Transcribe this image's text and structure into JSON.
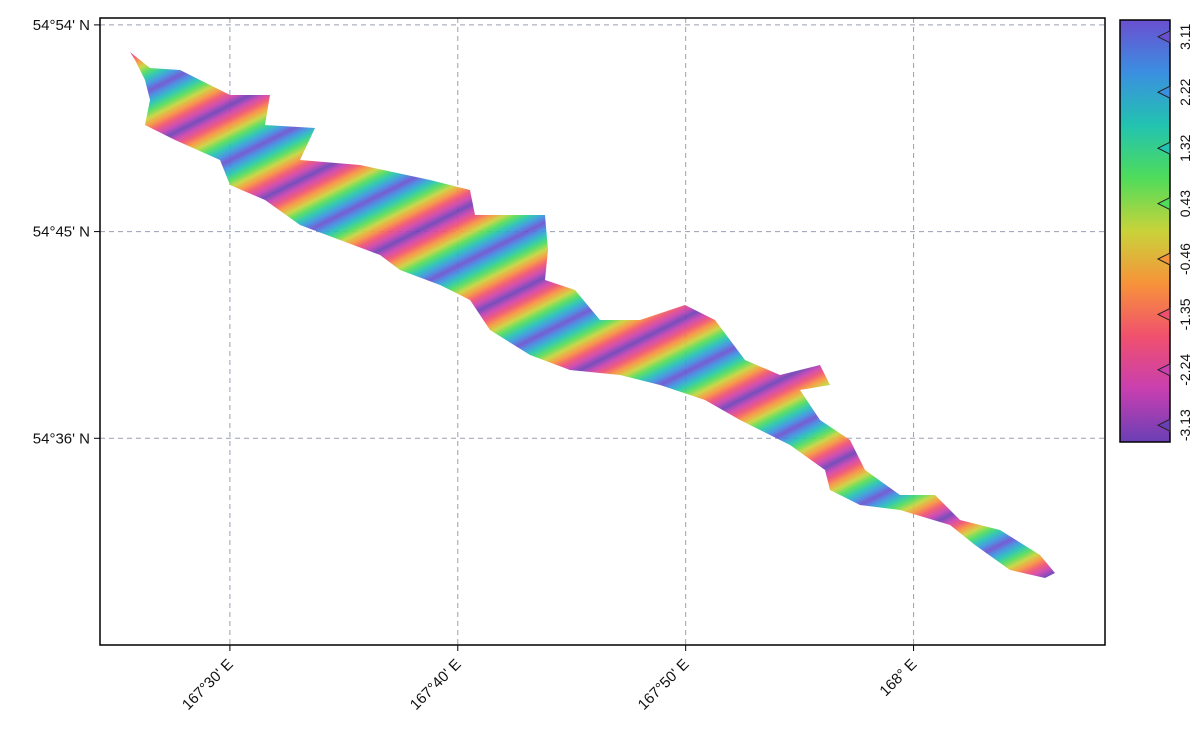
{
  "map": {
    "xlim": [
      167.405,
      168.14
    ],
    "ylim": [
      54.45,
      54.905
    ],
    "lon_ticks": [
      {
        "value": 167.5,
        "label": "167°30' E"
      },
      {
        "value": 167.6666667,
        "label": "167°40' E"
      },
      {
        "value": 167.8333333,
        "label": "167°50' E"
      },
      {
        "value": 168.0,
        "label": "168° E"
      }
    ],
    "lat_ticks": [
      {
        "value": 54.9,
        "label": "54°54' N"
      },
      {
        "value": 54.75,
        "label": "54°45' N"
      },
      {
        "value": 54.6,
        "label": "54°36' N"
      }
    ],
    "grid": true,
    "colorbar": {
      "lim": [
        -3.4,
        3.38
      ],
      "ticks": [
        -3.13,
        -2.24,
        -1.35,
        -0.46,
        0.43,
        1.32,
        2.22,
        3.11
      ],
      "colormap": [
        "#6a3fb5",
        "#c83fb0",
        "#f0506e",
        "#f7933a",
        "#c9d33a",
        "#4fdc5a",
        "#22c3b0",
        "#3b8fe0",
        "#6a4fd0"
      ]
    }
  }
}
